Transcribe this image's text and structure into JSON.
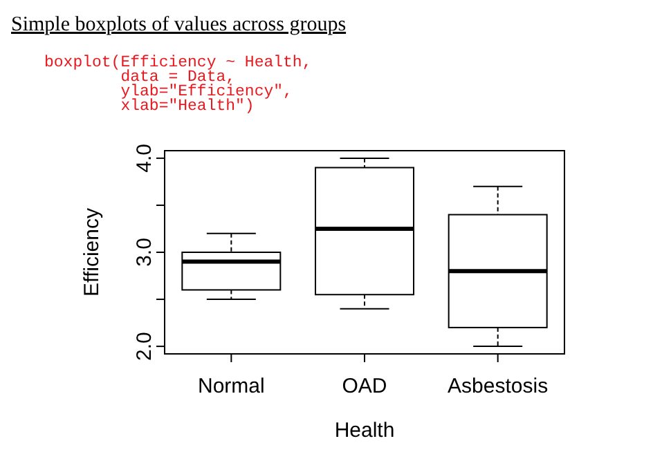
{
  "chart_data": {
    "type": "box",
    "title": "Simple boxplots of values across groups",
    "annotations": [
      "boxplot(Efficiency ~ Health,\n        data = Data,\n        ylab=\"Efficiency\",\n        xlab=\"Health\")"
    ],
    "xlabel": "Health",
    "ylabel": "Efficiency",
    "categories": [
      "Normal",
      "OAD",
      "Asbestosis"
    ],
    "boxes": [
      {
        "low": 2.5,
        "q1": 2.6,
        "median": 2.9,
        "q3": 3.0,
        "high": 3.2
      },
      {
        "low": 2.4,
        "q1": 2.55,
        "median": 3.25,
        "q3": 3.9,
        "high": 4.0
      },
      {
        "low": 2.0,
        "q1": 2.2,
        "median": 2.8,
        "q3": 3.4,
        "high": 3.7
      }
    ],
    "ylim": [
      1.92,
      4.08
    ],
    "yticks": [
      {
        "value": 2.0,
        "label": "2.0"
      },
      {
        "value": 2.5,
        "label": null
      },
      {
        "value": 3.0,
        "label": "3.0"
      },
      {
        "value": 3.5,
        "label": null
      },
      {
        "value": 4.0,
        "label": "4.0"
      }
    ],
    "grid": false
  }
}
